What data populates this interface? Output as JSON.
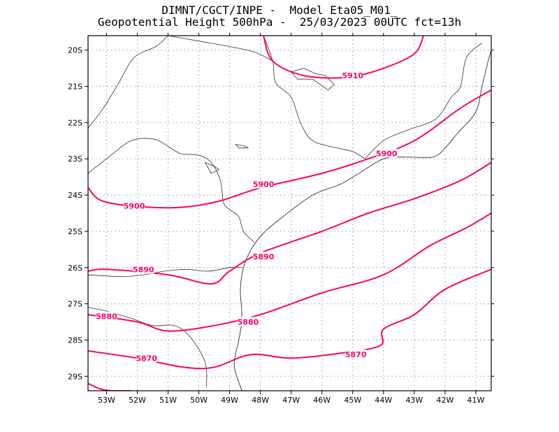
{
  "title": {
    "line1": "DIMNT/CGCT/INPE -  Model Eta05_M01_",
    "line2": "Geopotential Height 500hPa -  25/03/2023 00UTC fct=13h"
  },
  "colors": {
    "contour": "#ff0066",
    "coast": "#333333",
    "grid": "#999999"
  },
  "map": {
    "lon_range": [
      -53.6,
      -40.5
    ],
    "lat_range": [
      -29.4,
      -19.6
    ],
    "lon_ticks": [
      {
        "value": -53,
        "label": "53W"
      },
      {
        "value": -52,
        "label": "52W"
      },
      {
        "value": -51,
        "label": "51W"
      },
      {
        "value": -50,
        "label": "50W"
      },
      {
        "value": -49,
        "label": "49W"
      },
      {
        "value": -48,
        "label": "48W"
      },
      {
        "value": -47,
        "label": "47W"
      },
      {
        "value": -46,
        "label": "46W"
      },
      {
        "value": -45,
        "label": "45W"
      },
      {
        "value": -44,
        "label": "44W"
      },
      {
        "value": -43,
        "label": "43W"
      },
      {
        "value": -42,
        "label": "42W"
      },
      {
        "value": -41,
        "label": "41W"
      }
    ],
    "lat_ticks": [
      {
        "value": -20,
        "label": "20S"
      },
      {
        "value": -21,
        "label": "21S"
      },
      {
        "value": -22,
        "label": "22S"
      },
      {
        "value": -23,
        "label": "23S"
      },
      {
        "value": -24,
        "label": "24S"
      },
      {
        "value": -25,
        "label": "25S"
      },
      {
        "value": -26,
        "label": "26S"
      },
      {
        "value": -27,
        "label": "27S"
      },
      {
        "value": -28,
        "label": "28S"
      },
      {
        "value": -29,
        "label": "29S"
      }
    ],
    "grid": "dotted"
  },
  "contours": [
    {
      "level": "5910",
      "points": [
        [
          -47.9,
          -19.6
        ],
        [
          -47.6,
          -20.3
        ],
        [
          -46.6,
          -20.7
        ],
        [
          -45.2,
          -20.75
        ],
        [
          -44.0,
          -20.5
        ],
        [
          -43.0,
          -20.1
        ],
        [
          -42.7,
          -19.6
        ]
      ],
      "labels": [
        {
          "text": "5910",
          "lon": -45.0,
          "lat": -20.7
        }
      ]
    },
    {
      "level": "5900",
      "points": [
        [
          -53.6,
          -23.8
        ],
        [
          -53.0,
          -24.2
        ],
        [
          -51.0,
          -24.35
        ],
        [
          -49.5,
          -24.2
        ],
        [
          -48.0,
          -23.8
        ],
        [
          -46.0,
          -23.4
        ],
        [
          -44.5,
          -23.0
        ],
        [
          -43.0,
          -22.5
        ],
        [
          -41.5,
          -21.6
        ],
        [
          -40.5,
          -21.1
        ]
      ],
      "labels": [
        {
          "text": "5900",
          "lon": -52.1,
          "lat": -24.3
        },
        {
          "text": "5900",
          "lon": -47.9,
          "lat": -23.7
        },
        {
          "text": "5900",
          "lon": -43.9,
          "lat": -22.85
        }
      ]
    },
    {
      "level": "5890",
      "points": [
        [
          -53.6,
          -26.1
        ],
        [
          -53.0,
          -26.05
        ],
        [
          -51.0,
          -26.2
        ],
        [
          -49.6,
          -26.45
        ],
        [
          -49.0,
          -26.1
        ],
        [
          -48.0,
          -25.6
        ],
        [
          -46.0,
          -25.0
        ],
        [
          -44.5,
          -24.5
        ],
        [
          -43.0,
          -24.1
        ],
        [
          -41.5,
          -23.6
        ],
        [
          -40.5,
          -23.1
        ]
      ],
      "labels": [
        {
          "text": "5890",
          "lon": -51.8,
          "lat": -26.05
        },
        {
          "text": "5890",
          "lon": -47.9,
          "lat": -25.7
        }
      ]
    },
    {
      "level": "5880",
      "points": [
        [
          -53.6,
          -27.3
        ],
        [
          -52.0,
          -27.5
        ],
        [
          -51.0,
          -27.75
        ],
        [
          -49.5,
          -27.6
        ],
        [
          -48.0,
          -27.3
        ],
        [
          -46.0,
          -26.7
        ],
        [
          -44.0,
          -26.2
        ],
        [
          -42.5,
          -25.4
        ],
        [
          -41.3,
          -24.9
        ],
        [
          -40.5,
          -24.5
        ]
      ],
      "labels": [
        {
          "text": "5880",
          "lon": -53.0,
          "lat": -27.35
        },
        {
          "text": "5880",
          "lon": -48.4,
          "lat": -27.5
        }
      ]
    },
    {
      "level": "5870",
      "points": [
        [
          -53.6,
          -28.3
        ],
        [
          -52.0,
          -28.5
        ],
        [
          -50.5,
          -28.75
        ],
        [
          -49.5,
          -28.75
        ],
        [
          -48.3,
          -28.4
        ],
        [
          -47.0,
          -28.5
        ],
        [
          -45.3,
          -28.35
        ],
        [
          -44.1,
          -28.15
        ],
        [
          -44.0,
          -27.7
        ],
        [
          -43.0,
          -27.3
        ],
        [
          -42.0,
          -26.6
        ],
        [
          -40.5,
          -26.05
        ]
      ],
      "labels": [
        {
          "text": "5870",
          "lon": -51.7,
          "lat": -28.5
        },
        {
          "text": "5870",
          "lon": -44.9,
          "lat": -28.4
        }
      ]
    },
    {
      "level": "",
      "points": [
        [
          -53.6,
          -29.2
        ],
        [
          -53.2,
          -29.35
        ],
        [
          -52.8,
          -29.4
        ],
        [
          -52.2,
          -29.4
        ]
      ],
      "labels": []
    }
  ],
  "coastline": [
    [
      -48.6,
      -29.4
    ],
    [
      -48.85,
      -28.7
    ],
    [
      -48.7,
      -28.0
    ],
    [
      -48.6,
      -27.4
    ],
    [
      -48.65,
      -26.6
    ],
    [
      -48.55,
      -26.0
    ],
    [
      -48.3,
      -25.5
    ],
    [
      -47.9,
      -25.05
    ],
    [
      -47.2,
      -24.55
    ],
    [
      -46.3,
      -24.0
    ],
    [
      -45.4,
      -23.7
    ],
    [
      -44.8,
      -23.4
    ],
    [
      -44.0,
      -23.0
    ],
    [
      -43.3,
      -22.95
    ],
    [
      -42.4,
      -22.95
    ],
    [
      -42.0,
      -22.7
    ],
    [
      -41.6,
      -22.3
    ],
    [
      -41.0,
      -21.7
    ],
    [
      -40.8,
      -21.0
    ],
    [
      -40.6,
      -20.3
    ],
    [
      -40.5,
      -20.0
    ]
  ],
  "borders": [
    [
      [
        -53.6,
        -23.4
      ],
      [
        -53.0,
        -23.0
      ],
      [
        -52.2,
        -22.5
      ],
      [
        -51.5,
        -22.45
      ],
      [
        -51.1,
        -22.6
      ],
      [
        -50.6,
        -22.85
      ],
      [
        -50.0,
        -22.9
      ],
      [
        -49.6,
        -23.1
      ],
      [
        -49.3,
        -23.6
      ],
      [
        -49.2,
        -24.2
      ],
      [
        -49.0,
        -24.4
      ],
      [
        -48.7,
        -24.6
      ],
      [
        -48.55,
        -25.0
      ],
      [
        -48.2,
        -25.3
      ]
    ],
    [
      [
        -53.6,
        -22.15
      ],
      [
        -53.1,
        -21.6
      ],
      [
        -52.6,
        -20.9
      ],
      [
        -52.1,
        -20.2
      ],
      [
        -51.4,
        -19.9
      ],
      [
        -51.0,
        -19.6
      ]
    ],
    [
      [
        -51.0,
        -19.6
      ],
      [
        -50.0,
        -19.75
      ],
      [
        -49.0,
        -19.9
      ],
      [
        -48.2,
        -20.05
      ],
      [
        -47.6,
        -20.3
      ]
    ],
    [
      [
        -47.9,
        -19.6
      ],
      [
        -47.6,
        -20.3
      ],
      [
        -47.5,
        -20.9
      ],
      [
        -47.0,
        -21.3
      ],
      [
        -46.7,
        -22.0
      ],
      [
        -46.3,
        -22.5
      ],
      [
        -45.5,
        -22.7
      ],
      [
        -45.0,
        -22.8
      ],
      [
        -44.6,
        -23.0
      ]
    ],
    [
      [
        -44.6,
        -23.0
      ],
      [
        -44.0,
        -22.5
      ],
      [
        -43.2,
        -22.2
      ],
      [
        -42.3,
        -21.9
      ],
      [
        -41.8,
        -21.3
      ],
      [
        -41.5,
        -21.0
      ],
      [
        -41.3,
        -20.2
      ],
      [
        -40.8,
        -19.8
      ]
    ],
    [
      [
        -53.6,
        -26.2
      ],
      [
        -52.5,
        -26.25
      ],
      [
        -51.8,
        -26.2
      ],
      [
        -51.1,
        -26.1
      ],
      [
        -50.4,
        -26.05
      ],
      [
        -49.7,
        -26.1
      ],
      [
        -49.0,
        -26.0
      ],
      [
        -48.6,
        -26.0
      ]
    ],
    [
      [
        -53.6,
        -27.1
      ],
      [
        -53.0,
        -27.2
      ],
      [
        -52.2,
        -27.4
      ],
      [
        -51.5,
        -27.6
      ],
      [
        -50.8,
        -27.6
      ],
      [
        -50.3,
        -27.9
      ],
      [
        -49.8,
        -28.6
      ],
      [
        -49.75,
        -29.3
      ]
    ]
  ],
  "lakes": [
    [
      [
        -47.0,
        -20.6
      ],
      [
        -46.6,
        -20.5
      ],
      [
        -46.2,
        -20.65
      ],
      [
        -45.9,
        -20.7
      ],
      [
        -45.6,
        -20.95
      ],
      [
        -45.8,
        -21.1
      ],
      [
        -46.3,
        -20.8
      ],
      [
        -46.8,
        -20.8
      ],
      [
        -47.0,
        -20.6
      ]
    ],
    [
      [
        -49.8,
        -23.1
      ],
      [
        -49.5,
        -23.2
      ],
      [
        -49.35,
        -23.3
      ],
      [
        -49.6,
        -23.4
      ],
      [
        -49.8,
        -23.1
      ]
    ],
    [
      [
        -48.8,
        -22.6
      ],
      [
        -48.5,
        -22.65
      ],
      [
        -48.4,
        -22.7
      ],
      [
        -48.7,
        -22.7
      ],
      [
        -48.8,
        -22.6
      ]
    ]
  ]
}
